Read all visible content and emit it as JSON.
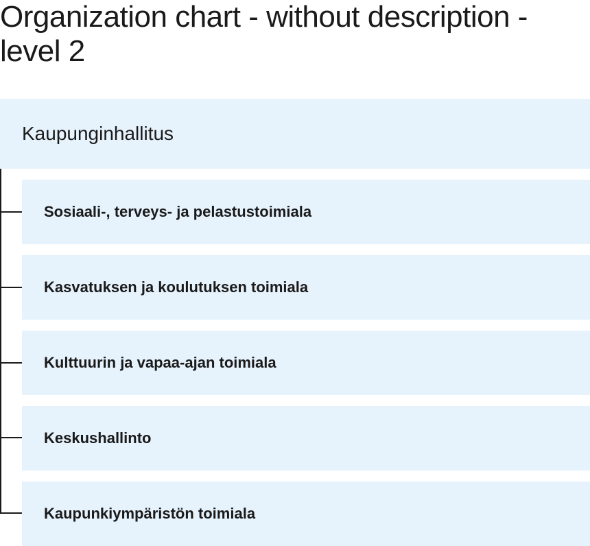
{
  "page": {
    "title": "Organization chart - without description - level 2"
  },
  "org_chart": {
    "root": {
      "label": "Kaupunginhallitus"
    },
    "children": [
      {
        "label": "Sosiaali-, terveys- ja pelastustoimiala"
      },
      {
        "label": "Kasvatuksen ja koulutuksen toimiala"
      },
      {
        "label": "Kulttuurin ja vapaa-ajan toimiala"
      },
      {
        "label": "Keskushallinto"
      },
      {
        "label": "Kaupunkiympäristön toimiala"
      }
    ]
  },
  "colors": {
    "box_background": "#e6f2fc",
    "text": "#1a1a1a",
    "connector": "#1a1a1a"
  }
}
